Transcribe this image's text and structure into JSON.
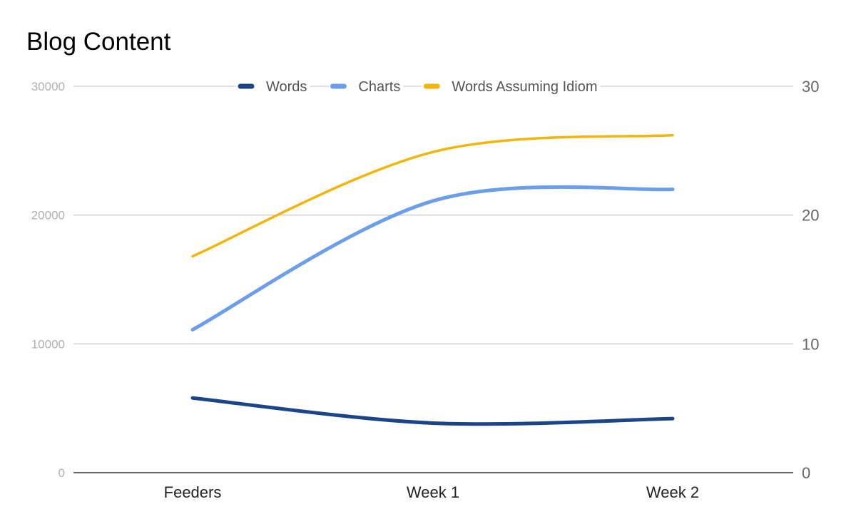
{
  "chart_data": {
    "type": "line",
    "title": "Blog Content",
    "categories": [
      "Feeders",
      "Week 1",
      "Week 2"
    ],
    "y_left": {
      "ticks": [
        "0",
        "10000",
        "20000",
        "30000"
      ],
      "range": [
        0,
        30000
      ]
    },
    "y_right": {
      "ticks": [
        "0",
        "10",
        "20",
        "30"
      ],
      "range": [
        0,
        30
      ]
    },
    "legend_position": "top",
    "grid": true,
    "series": [
      {
        "name": "Words",
        "axis": "left",
        "values": [
          5800,
          3850,
          4200
        ],
        "color": "#1c4587"
      },
      {
        "name": "Charts",
        "axis": "right",
        "values": [
          11.1,
          21.1,
          22.0
        ],
        "color": "#6d9eeb"
      },
      {
        "name": "Words Assuming Idiom",
        "axis": "right",
        "values": [
          16.8,
          24.9,
          26.2
        ],
        "color": "#f1b60d"
      }
    ]
  }
}
